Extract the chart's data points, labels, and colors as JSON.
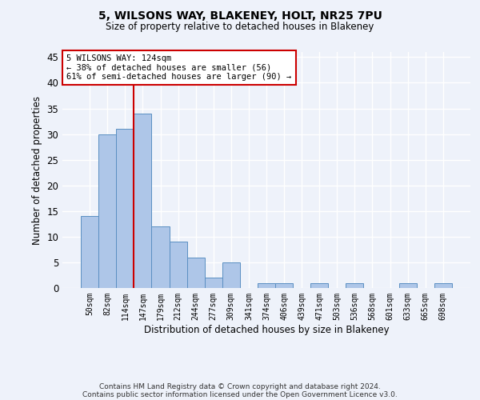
{
  "title_line1": "5, WILSONS WAY, BLAKENEY, HOLT, NR25 7PU",
  "title_line2": "Size of property relative to detached houses in Blakeney",
  "xlabel": "Distribution of detached houses by size in Blakeney",
  "ylabel": "Number of detached properties",
  "bin_labels": [
    "50sqm",
    "82sqm",
    "114sqm",
    "147sqm",
    "179sqm",
    "212sqm",
    "244sqm",
    "277sqm",
    "309sqm",
    "341sqm",
    "374sqm",
    "406sqm",
    "439sqm",
    "471sqm",
    "503sqm",
    "536sqm",
    "568sqm",
    "601sqm",
    "633sqm",
    "665sqm",
    "698sqm"
  ],
  "bin_values": [
    14,
    30,
    31,
    34,
    12,
    9,
    6,
    2,
    5,
    0,
    1,
    1,
    0,
    1,
    0,
    1,
    0,
    0,
    1,
    0,
    1
  ],
  "bar_color": "#aec6e8",
  "bar_edge_color": "#5a8fc2",
  "vline_color": "#cc0000",
  "annotation_text": "5 WILSONS WAY: 124sqm\n← 38% of detached houses are smaller (56)\n61% of semi-detached houses are larger (90) →",
  "annotation_box_color": "#ffffff",
  "annotation_box_edge_color": "#cc0000",
  "ylim": [
    0,
    46
  ],
  "yticks": [
    0,
    5,
    10,
    15,
    20,
    25,
    30,
    35,
    40,
    45
  ],
  "footnote1": "Contains HM Land Registry data © Crown copyright and database right 2024.",
  "footnote2": "Contains public sector information licensed under the Open Government Licence v3.0.",
  "bg_color": "#eef2fa",
  "plot_bg_color": "#eef2fa",
  "grid_color": "#ffffff"
}
